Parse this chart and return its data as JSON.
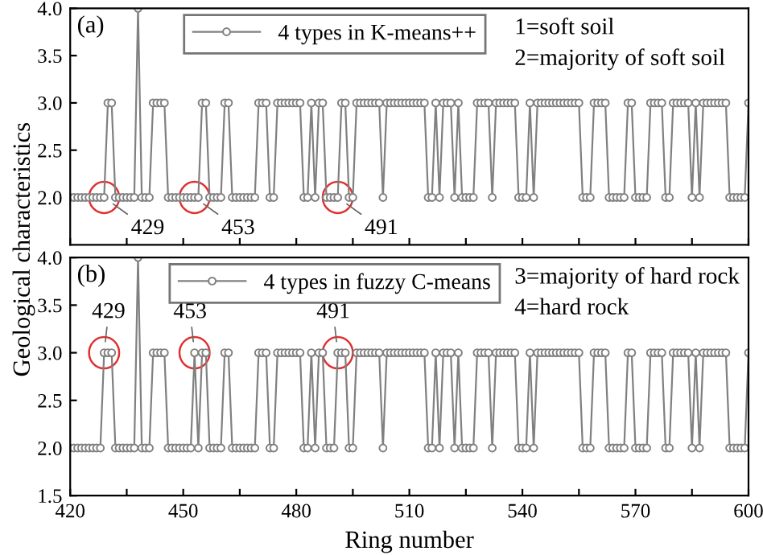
{
  "chart_data": [
    {
      "type": "line",
      "title": "(a)",
      "ylabel": "Geological characteristics",
      "x": [
        420,
        421,
        422,
        423,
        424,
        425,
        426,
        427,
        428,
        429,
        430,
        431,
        432,
        433,
        434,
        435,
        436,
        437,
        438,
        439,
        440,
        441,
        442,
        443,
        444,
        445,
        446,
        447,
        448,
        449,
        450,
        451,
        452,
        453,
        454,
        455,
        456,
        457,
        458,
        459,
        460,
        461,
        462,
        463,
        464,
        465,
        466,
        467,
        468,
        469,
        470,
        471,
        472,
        473,
        474,
        475,
        476,
        477,
        478,
        479,
        480,
        481,
        482,
        483,
        484,
        485,
        486,
        487,
        488,
        489,
        490,
        491,
        492,
        493,
        494,
        495,
        496,
        497,
        498,
        499,
        500,
        501,
        502,
        503,
        504,
        505,
        506,
        507,
        508,
        509,
        510,
        511,
        512,
        513,
        514,
        515,
        516,
        517,
        518,
        519,
        520,
        521,
        522,
        523,
        524,
        525,
        526,
        527,
        528,
        529,
        530,
        531,
        532,
        533,
        534,
        535,
        536,
        537,
        538,
        539,
        540,
        541,
        542,
        543,
        544,
        545,
        546,
        547,
        548,
        549,
        550,
        551,
        552,
        553,
        554,
        555,
        556,
        557,
        558,
        559,
        560,
        561,
        562,
        563,
        564,
        565,
        566,
        567,
        568,
        569,
        570,
        571,
        572,
        573,
        574,
        575,
        576,
        577,
        578,
        579,
        580,
        581,
        582,
        583,
        584,
        585,
        586,
        587,
        588,
        589,
        590,
        591,
        592,
        593,
        594,
        595,
        596,
        597,
        598,
        599,
        600
      ],
      "series": [
        {
          "name": "4 types in K-means++",
          "color": "#808080",
          "values": [
            2,
            2,
            2,
            2,
            2,
            2,
            2,
            2,
            2,
            2,
            3,
            3,
            2,
            2,
            2,
            2,
            2,
            2,
            4,
            2,
            2,
            2,
            3,
            3,
            3,
            3,
            2,
            2,
            2,
            2,
            2,
            2,
            2,
            2,
            2,
            3,
            3,
            2,
            2,
            2,
            2,
            3,
            3,
            2,
            2,
            2,
            2,
            2,
            2,
            2,
            3,
            3,
            3,
            2,
            2,
            3,
            3,
            3,
            3,
            3,
            3,
            3,
            2,
            2,
            3,
            2,
            3,
            3,
            2,
            2,
            2,
            2,
            3,
            3,
            2,
            2,
            3,
            3,
            3,
            3,
            3,
            3,
            3,
            2,
            3,
            3,
            3,
            3,
            3,
            3,
            3,
            3,
            3,
            3,
            3,
            2,
            2,
            3,
            2,
            3,
            3,
            3,
            2,
            3,
            2,
            2,
            2,
            2,
            3,
            3,
            3,
            3,
            2,
            3,
            3,
            3,
            3,
            3,
            3,
            2,
            2,
            2,
            3,
            2,
            3,
            3,
            3,
            3,
            3,
            3,
            3,
            3,
            3,
            3,
            3,
            3,
            2,
            2,
            2,
            3,
            3,
            3,
            3,
            2,
            2,
            2,
            2,
            2,
            3,
            3,
            2,
            2,
            2,
            2,
            3,
            3,
            3,
            3,
            2,
            2,
            3,
            3,
            3,
            3,
            3,
            2,
            3,
            2,
            3,
            3,
            3,
            3,
            3,
            3,
            3,
            2,
            2,
            2,
            2,
            2,
            3
          ]
        }
      ],
      "annotations": [
        {
          "text": "429",
          "x": 429,
          "y": 2
        },
        {
          "text": "453",
          "x": 453,
          "y": 2
        },
        {
          "text": "491",
          "x": 491,
          "y": 2
        },
        "1=soft soil",
        "2=majority of soft soil"
      ],
      "xlim": [
        420,
        600
      ],
      "xticks": [
        420,
        {
          "value": 435,
          "label": null
        },
        450,
        {
          "value": 465,
          "label": null
        },
        480,
        {
          "value": 495,
          "label": null
        },
        510,
        {
          "value": 525,
          "label": null
        },
        540,
        {
          "value": 555,
          "label": null
        },
        570,
        {
          "value": 585,
          "label": null
        },
        600
      ],
      "ylim": [
        1.5,
        4.0
      ],
      "yticks": [
        {
          "value": 2,
          "label": "2.0"
        },
        {
          "value": 2.5,
          "label": "2.5"
        },
        {
          "value": 3,
          "label": "3.0"
        },
        {
          "value": 3.5,
          "label": "3.5"
        },
        {
          "value": 4,
          "label": "4.0"
        }
      ],
      "tick_labels": "y",
      "legend": "top",
      "marker": "circle",
      "line_style": "solid",
      "grid": false
    },
    {
      "type": "line",
      "title": "(b)",
      "xlabel": "Ring number",
      "x": [
        420,
        421,
        422,
        423,
        424,
        425,
        426,
        427,
        428,
        429,
        430,
        431,
        432,
        433,
        434,
        435,
        436,
        437,
        438,
        439,
        440,
        441,
        442,
        443,
        444,
        445,
        446,
        447,
        448,
        449,
        450,
        451,
        452,
        453,
        454,
        455,
        456,
        457,
        458,
        459,
        460,
        461,
        462,
        463,
        464,
        465,
        466,
        467,
        468,
        469,
        470,
        471,
        472,
        473,
        474,
        475,
        476,
        477,
        478,
        479,
        480,
        481,
        482,
        483,
        484,
        485,
        486,
        487,
        488,
        489,
        490,
        491,
        492,
        493,
        494,
        495,
        496,
        497,
        498,
        499,
        500,
        501,
        502,
        503,
        504,
        505,
        506,
        507,
        508,
        509,
        510,
        511,
        512,
        513,
        514,
        515,
        516,
        517,
        518,
        519,
        520,
        521,
        522,
        523,
        524,
        525,
        526,
        527,
        528,
        529,
        530,
        531,
        532,
        533,
        534,
        535,
        536,
        537,
        538,
        539,
        540,
        541,
        542,
        543,
        544,
        545,
        546,
        547,
        548,
        549,
        550,
        551,
        552,
        553,
        554,
        555,
        556,
        557,
        558,
        559,
        560,
        561,
        562,
        563,
        564,
        565,
        566,
        567,
        568,
        569,
        570,
        571,
        572,
        573,
        574,
        575,
        576,
        577,
        578,
        579,
        580,
        581,
        582,
        583,
        584,
        585,
        586,
        587,
        588,
        589,
        590,
        591,
        592,
        593,
        594,
        595,
        596,
        597,
        598,
        599,
        600
      ],
      "series": [
        {
          "name": "4 types in fuzzy C-means",
          "color": "#808080",
          "values": [
            2,
            2,
            2,
            2,
            2,
            2,
            2,
            2,
            2,
            3,
            3,
            3,
            2,
            2,
            2,
            2,
            2,
            2,
            4,
            2,
            2,
            2,
            3,
            3,
            3,
            3,
            2,
            2,
            2,
            2,
            2,
            2,
            2,
            3,
            2,
            3,
            3,
            2,
            2,
            2,
            2,
            3,
            3,
            2,
            2,
            2,
            2,
            2,
            2,
            2,
            3,
            3,
            3,
            2,
            2,
            3,
            3,
            3,
            3,
            3,
            3,
            3,
            2,
            2,
            3,
            2,
            3,
            3,
            2,
            2,
            2,
            3,
            3,
            3,
            2,
            2,
            3,
            3,
            3,
            3,
            3,
            3,
            3,
            2,
            3,
            3,
            3,
            3,
            3,
            3,
            3,
            3,
            3,
            3,
            3,
            2,
            2,
            3,
            2,
            3,
            3,
            3,
            2,
            3,
            2,
            2,
            2,
            2,
            3,
            3,
            3,
            3,
            2,
            3,
            3,
            3,
            3,
            3,
            3,
            2,
            2,
            2,
            3,
            2,
            3,
            3,
            3,
            3,
            3,
            3,
            3,
            3,
            3,
            3,
            3,
            3,
            2,
            2,
            2,
            3,
            3,
            3,
            3,
            2,
            2,
            2,
            2,
            2,
            3,
            3,
            2,
            2,
            2,
            2,
            3,
            3,
            3,
            3,
            2,
            2,
            3,
            3,
            3,
            3,
            3,
            2,
            3,
            2,
            3,
            3,
            3,
            3,
            3,
            3,
            3,
            2,
            2,
            2,
            2,
            2,
            3
          ]
        }
      ],
      "annotations": [
        {
          "text": "429",
          "x": 429,
          "y": 3
        },
        {
          "text": "453",
          "x": 453,
          "y": 3
        },
        {
          "text": "491",
          "x": 491,
          "y": 3
        },
        "3=majority of hard rock",
        "4=hard rock"
      ],
      "xlim": [
        420,
        600
      ],
      "xticks": [
        420,
        {
          "value": 435,
          "label": null
        },
        450,
        {
          "value": 465,
          "label": null
        },
        480,
        {
          "value": 495,
          "label": null
        },
        510,
        {
          "value": 525,
          "label": null
        },
        540,
        {
          "value": 555,
          "label": null
        },
        570,
        {
          "value": 585,
          "label": null
        },
        600
      ],
      "ylim": [
        1.5,
        4.0
      ],
      "yticks": [
        1.5,
        {
          "value": 2,
          "label": "2.0"
        },
        {
          "value": 2.5,
          "label": "2.5"
        },
        {
          "value": 3,
          "label": "3.0"
        },
        {
          "value": 3.5,
          "label": "3.5"
        },
        {
          "value": 4,
          "label": "4.0"
        }
      ],
      "legend": "top",
      "marker": "circle",
      "line_style": "solid",
      "grid": false
    }
  ]
}
